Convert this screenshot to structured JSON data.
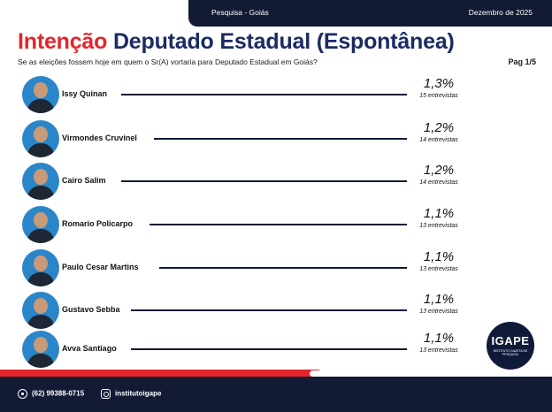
{
  "header": {
    "survey": "Pesquisa - Goiás",
    "date": "Dezembro de 2025"
  },
  "title": {
    "highlight": "Intenção",
    "main": "Deputado Estadual (Espontânea)"
  },
  "subtitle": "Se as eleições fossem hoje em quem o Sr(A) vortaria para Deputado Estadual em Goiás?",
  "page": "Pag 1/5",
  "candidates": [
    {
      "name": "Issy Quinan",
      "percent": "1,3%",
      "count": "15 entrevistas",
      "share": 1.3
    },
    {
      "name": "Virmondes Cruvinel",
      "percent": "1,2%",
      "count": "14 entrevistas",
      "share": 1.2
    },
    {
      "name": "Cairo Salim",
      "percent": "1,2%",
      "count": "14 entrevistas",
      "share": 1.2
    },
    {
      "name": "Romario Policarpo",
      "percent": "1,1%",
      "count": "13 entrevistas",
      "share": 1.1
    },
    {
      "name": "Paulo Cesar Martins",
      "percent": "1,1%",
      "count": "13 entrevistas",
      "share": 1.1
    },
    {
      "name": "Gustavo Sebba",
      "percent": "1,1%",
      "count": "13 entrevistas",
      "share": 1.1
    },
    {
      "name": "Avva Santiago",
      "percent": "1,1%",
      "count": "13 entrevistas",
      "share": 1.1
    }
  ],
  "logo": {
    "name": "IGAPE",
    "tagline": "INSTITUTO GAZETA DE PESQUISA"
  },
  "footer": {
    "phone": "(62) 99388-0715",
    "instagram": "institutoigape"
  },
  "colors": {
    "navy": "#121a34",
    "red": "#e3262c",
    "title_blue": "#1b2b63"
  },
  "icons": {
    "phone": "whatsapp-icon",
    "instagram": "instagram-icon"
  }
}
